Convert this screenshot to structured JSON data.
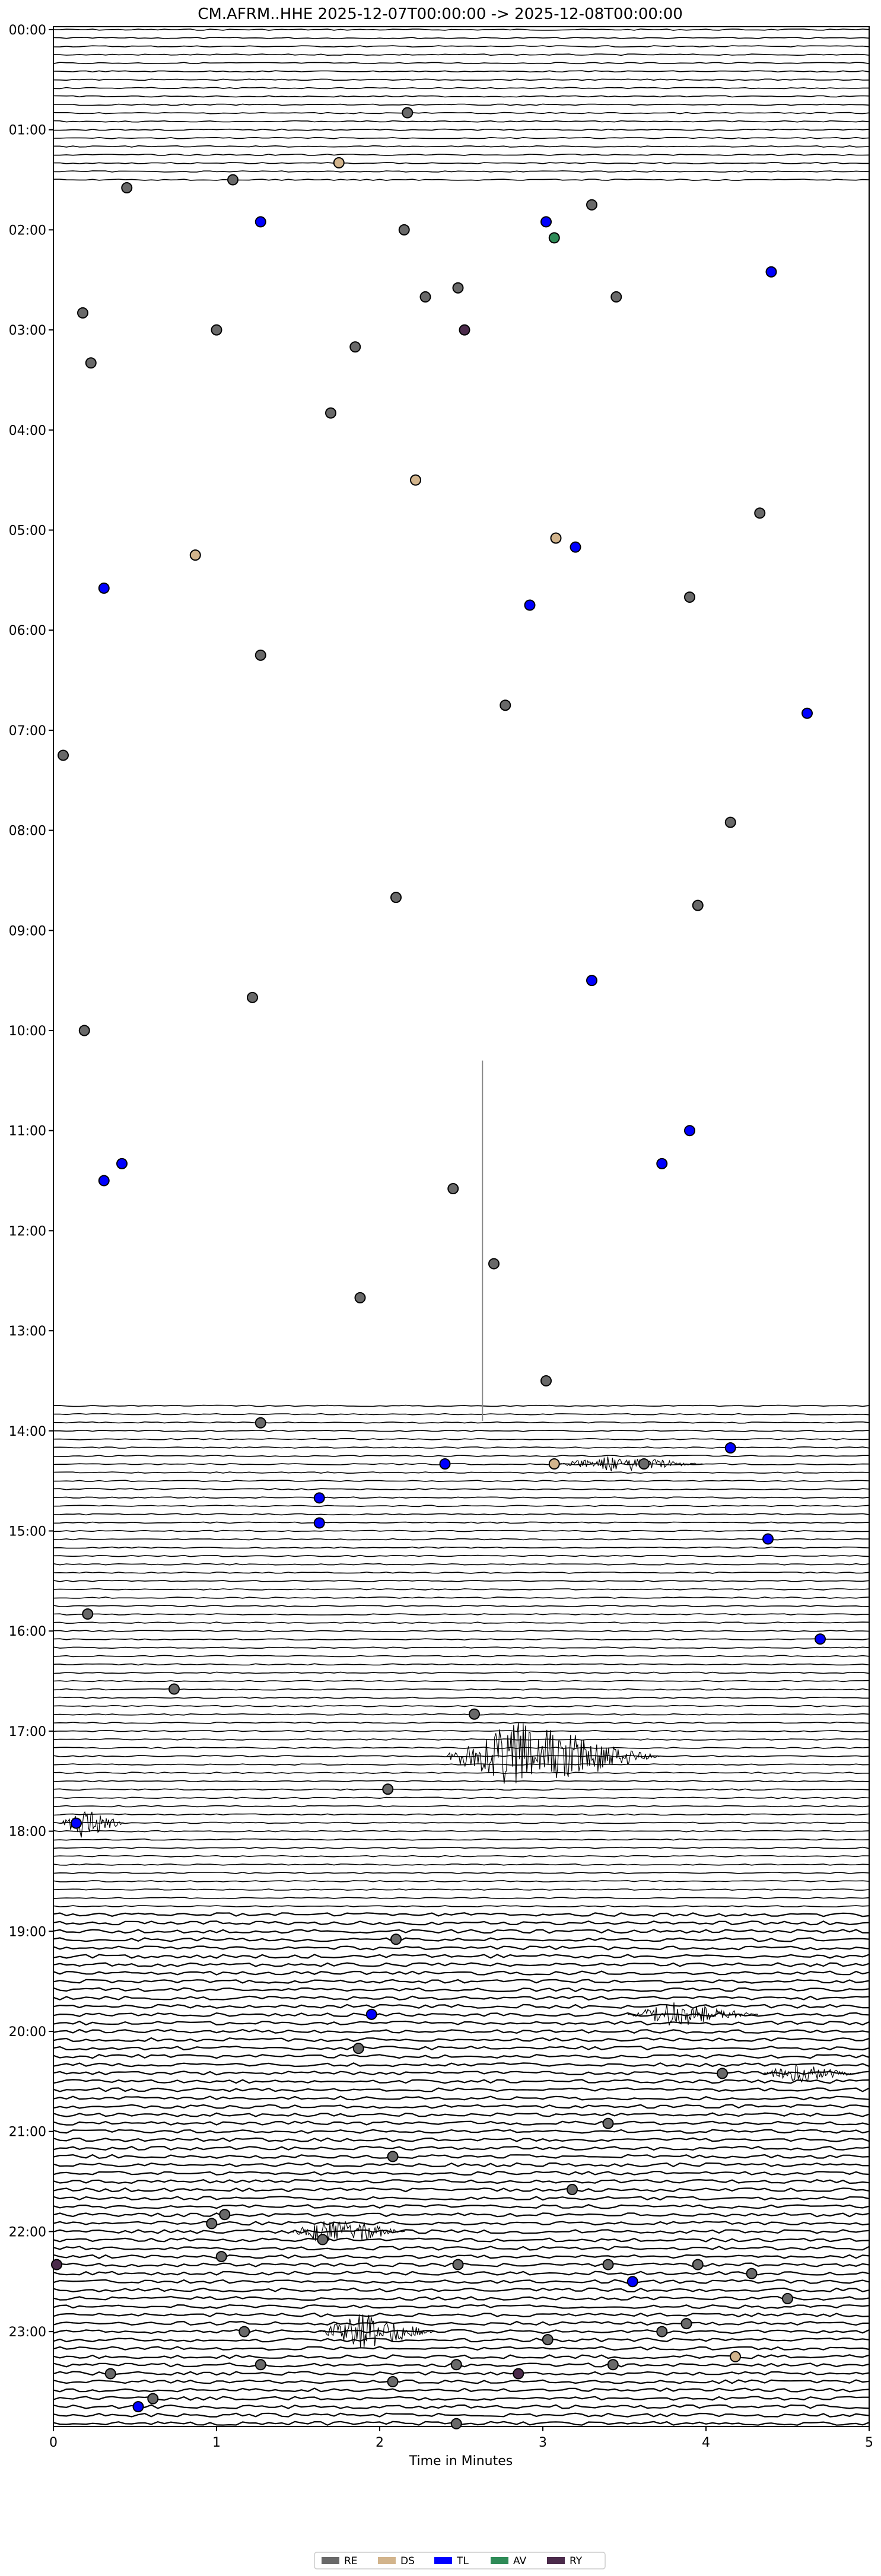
{
  "chart_data": {
    "type": "scatter",
    "title": "CM.AFRM..HHE  2025-12-07T00:00:00 -> 2025-12-08T00:00:00",
    "xlabel": "Time in Minutes",
    "ylabel": "",
    "xlim": [
      0,
      5
    ],
    "x_ticks": [
      "0",
      "1",
      "2",
      "3",
      "4",
      "5"
    ],
    "y_ticks": [
      "00:00",
      "01:00",
      "02:00",
      "03:00",
      "04:00",
      "05:00",
      "06:00",
      "07:00",
      "08:00",
      "09:00",
      "10:00",
      "11:00",
      "12:00",
      "13:00",
      "14:00",
      "15:00",
      "16:00",
      "17:00",
      "18:00",
      "19:00",
      "20:00",
      "21:00",
      "22:00",
      "23:00"
    ],
    "y_range_hours": [
      0,
      24
    ],
    "gap_hours": [
      1.58,
      13.68
    ],
    "legend": [
      {
        "code": "RE",
        "color": "#696969"
      },
      {
        "code": "DS",
        "color": "#d2b48c"
      },
      {
        "code": "TL",
        "color": "#0000ff"
      },
      {
        "code": "AV",
        "color": "#2e8b57"
      },
      {
        "code": "RY",
        "color": "#4b2b4b"
      }
    ],
    "legend_position": "bottom-center",
    "grid": false,
    "events": [
      {
        "hour": 0.83,
        "min": 2.17,
        "class": "RE"
      },
      {
        "hour": 1.33,
        "min": 1.75,
        "class": "DS"
      },
      {
        "hour": 1.5,
        "min": 1.1,
        "class": "RE"
      },
      {
        "hour": 1.58,
        "min": 0.45,
        "class": "RE"
      },
      {
        "hour": 1.75,
        "min": 3.3,
        "class": "RE"
      },
      {
        "hour": 1.92,
        "min": 1.27,
        "class": "TL"
      },
      {
        "hour": 1.92,
        "min": 3.02,
        "class": "TL"
      },
      {
        "hour": 2.0,
        "min": 2.15,
        "class": "RE"
      },
      {
        "hour": 2.08,
        "min": 3.07,
        "class": "AV"
      },
      {
        "hour": 2.42,
        "min": 4.4,
        "class": "TL"
      },
      {
        "hour": 2.58,
        "min": 2.48,
        "class": "RE"
      },
      {
        "hour": 2.67,
        "min": 2.28,
        "class": "RE"
      },
      {
        "hour": 2.67,
        "min": 3.45,
        "class": "RE"
      },
      {
        "hour": 2.83,
        "min": 0.18,
        "class": "RE"
      },
      {
        "hour": 3.0,
        "min": 1.0,
        "class": "RE"
      },
      {
        "hour": 3.0,
        "min": 2.52,
        "class": "RY"
      },
      {
        "hour": 3.17,
        "min": 1.85,
        "class": "RE"
      },
      {
        "hour": 3.33,
        "min": 0.23,
        "class": "RE"
      },
      {
        "hour": 3.83,
        "min": 1.7,
        "class": "RE"
      },
      {
        "hour": 4.5,
        "min": 2.22,
        "class": "DS"
      },
      {
        "hour": 4.83,
        "min": 4.33,
        "class": "RE"
      },
      {
        "hour": 5.08,
        "min": 3.08,
        "class": "DS"
      },
      {
        "hour": 5.17,
        "min": 3.2,
        "class": "TL"
      },
      {
        "hour": 5.25,
        "min": 0.87,
        "class": "DS"
      },
      {
        "hour": 5.58,
        "min": 0.31,
        "class": "TL"
      },
      {
        "hour": 5.67,
        "min": 3.9,
        "class": "RE"
      },
      {
        "hour": 5.75,
        "min": 2.92,
        "class": "TL"
      },
      {
        "hour": 6.25,
        "min": 1.27,
        "class": "RE"
      },
      {
        "hour": 6.75,
        "min": 2.77,
        "class": "RE"
      },
      {
        "hour": 6.83,
        "min": 4.62,
        "class": "TL"
      },
      {
        "hour": 7.25,
        "min": 0.06,
        "class": "RE"
      },
      {
        "hour": 7.92,
        "min": 4.15,
        "class": "RE"
      },
      {
        "hour": 8.67,
        "min": 2.1,
        "class": "RE"
      },
      {
        "hour": 8.75,
        "min": 3.95,
        "class": "RE"
      },
      {
        "hour": 9.5,
        "min": 3.3,
        "class": "TL"
      },
      {
        "hour": 9.67,
        "min": 1.22,
        "class": "RE"
      },
      {
        "hour": 10.0,
        "min": 0.19,
        "class": "RE"
      },
      {
        "hour": 11.0,
        "min": 3.9,
        "class": "TL"
      },
      {
        "hour": 11.33,
        "min": 0.42,
        "class": "TL"
      },
      {
        "hour": 11.33,
        "min": 3.73,
        "class": "TL"
      },
      {
        "hour": 11.5,
        "min": 0.31,
        "class": "TL"
      },
      {
        "hour": 11.58,
        "min": 2.45,
        "class": "RE"
      },
      {
        "hour": 12.33,
        "min": 2.7,
        "class": "RE"
      },
      {
        "hour": 12.67,
        "min": 1.88,
        "class": "RE"
      },
      {
        "hour": 13.5,
        "min": 3.02,
        "class": "RE"
      },
      {
        "hour": 13.92,
        "min": 1.27,
        "class": "RE"
      },
      {
        "hour": 14.17,
        "min": 4.15,
        "class": "TL"
      },
      {
        "hour": 14.33,
        "min": 2.4,
        "class": "TL"
      },
      {
        "hour": 14.33,
        "min": 3.07,
        "class": "DS"
      },
      {
        "hour": 14.33,
        "min": 3.62,
        "class": "RE"
      },
      {
        "hour": 14.67,
        "min": 1.63,
        "class": "TL"
      },
      {
        "hour": 14.92,
        "min": 1.63,
        "class": "TL"
      },
      {
        "hour": 15.08,
        "min": 4.38,
        "class": "TL"
      },
      {
        "hour": 15.83,
        "min": 0.21,
        "class": "RE"
      },
      {
        "hour": 16.08,
        "min": 4.7,
        "class": "TL"
      },
      {
        "hour": 16.58,
        "min": 0.74,
        "class": "RE"
      },
      {
        "hour": 16.83,
        "min": 2.58,
        "class": "RE"
      },
      {
        "hour": 17.58,
        "min": 2.05,
        "class": "RE"
      },
      {
        "hour": 17.92,
        "min": 0.14,
        "class": "TL"
      },
      {
        "hour": 19.08,
        "min": 2.1,
        "class": "RE"
      },
      {
        "hour": 19.83,
        "min": 1.95,
        "class": "TL"
      },
      {
        "hour": 20.17,
        "min": 1.87,
        "class": "RE"
      },
      {
        "hour": 20.42,
        "min": 4.1,
        "class": "RE"
      },
      {
        "hour": 20.92,
        "min": 3.4,
        "class": "RE"
      },
      {
        "hour": 21.25,
        "min": 2.08,
        "class": "RE"
      },
      {
        "hour": 21.58,
        "min": 3.18,
        "class": "RE"
      },
      {
        "hour": 21.83,
        "min": 1.05,
        "class": "RE"
      },
      {
        "hour": 21.92,
        "min": 0.97,
        "class": "RE"
      },
      {
        "hour": 22.08,
        "min": 1.65,
        "class": "RE"
      },
      {
        "hour": 22.25,
        "min": 1.03,
        "class": "RE"
      },
      {
        "hour": 22.33,
        "min": 0.02,
        "class": "RY"
      },
      {
        "hour": 22.33,
        "min": 2.48,
        "class": "RE"
      },
      {
        "hour": 22.33,
        "min": 3.4,
        "class": "RE"
      },
      {
        "hour": 22.33,
        "min": 3.95,
        "class": "RE"
      },
      {
        "hour": 22.42,
        "min": 4.28,
        "class": "RE"
      },
      {
        "hour": 22.5,
        "min": 3.55,
        "class": "TL"
      },
      {
        "hour": 22.67,
        "min": 4.5,
        "class": "RE"
      },
      {
        "hour": 22.92,
        "min": 3.88,
        "class": "RE"
      },
      {
        "hour": 23.0,
        "min": 1.17,
        "class": "RE"
      },
      {
        "hour": 23.0,
        "min": 3.73,
        "class": "RE"
      },
      {
        "hour": 23.08,
        "min": 3.03,
        "class": "RE"
      },
      {
        "hour": 23.25,
        "min": 4.18,
        "class": "DS"
      },
      {
        "hour": 23.33,
        "min": 1.27,
        "class": "RE"
      },
      {
        "hour": 23.33,
        "min": 2.47,
        "class": "RE"
      },
      {
        "hour": 23.33,
        "min": 3.43,
        "class": "RE"
      },
      {
        "hour": 23.42,
        "min": 0.35,
        "class": "RE"
      },
      {
        "hour": 23.42,
        "min": 2.85,
        "class": "RY"
      },
      {
        "hour": 23.5,
        "min": 2.08,
        "class": "RE"
      },
      {
        "hour": 23.67,
        "min": 0.61,
        "class": "RE"
      },
      {
        "hour": 23.75,
        "min": 0.52,
        "class": "TL"
      },
      {
        "hour": 23.92,
        "min": 2.47,
        "class": "RE"
      }
    ]
  }
}
